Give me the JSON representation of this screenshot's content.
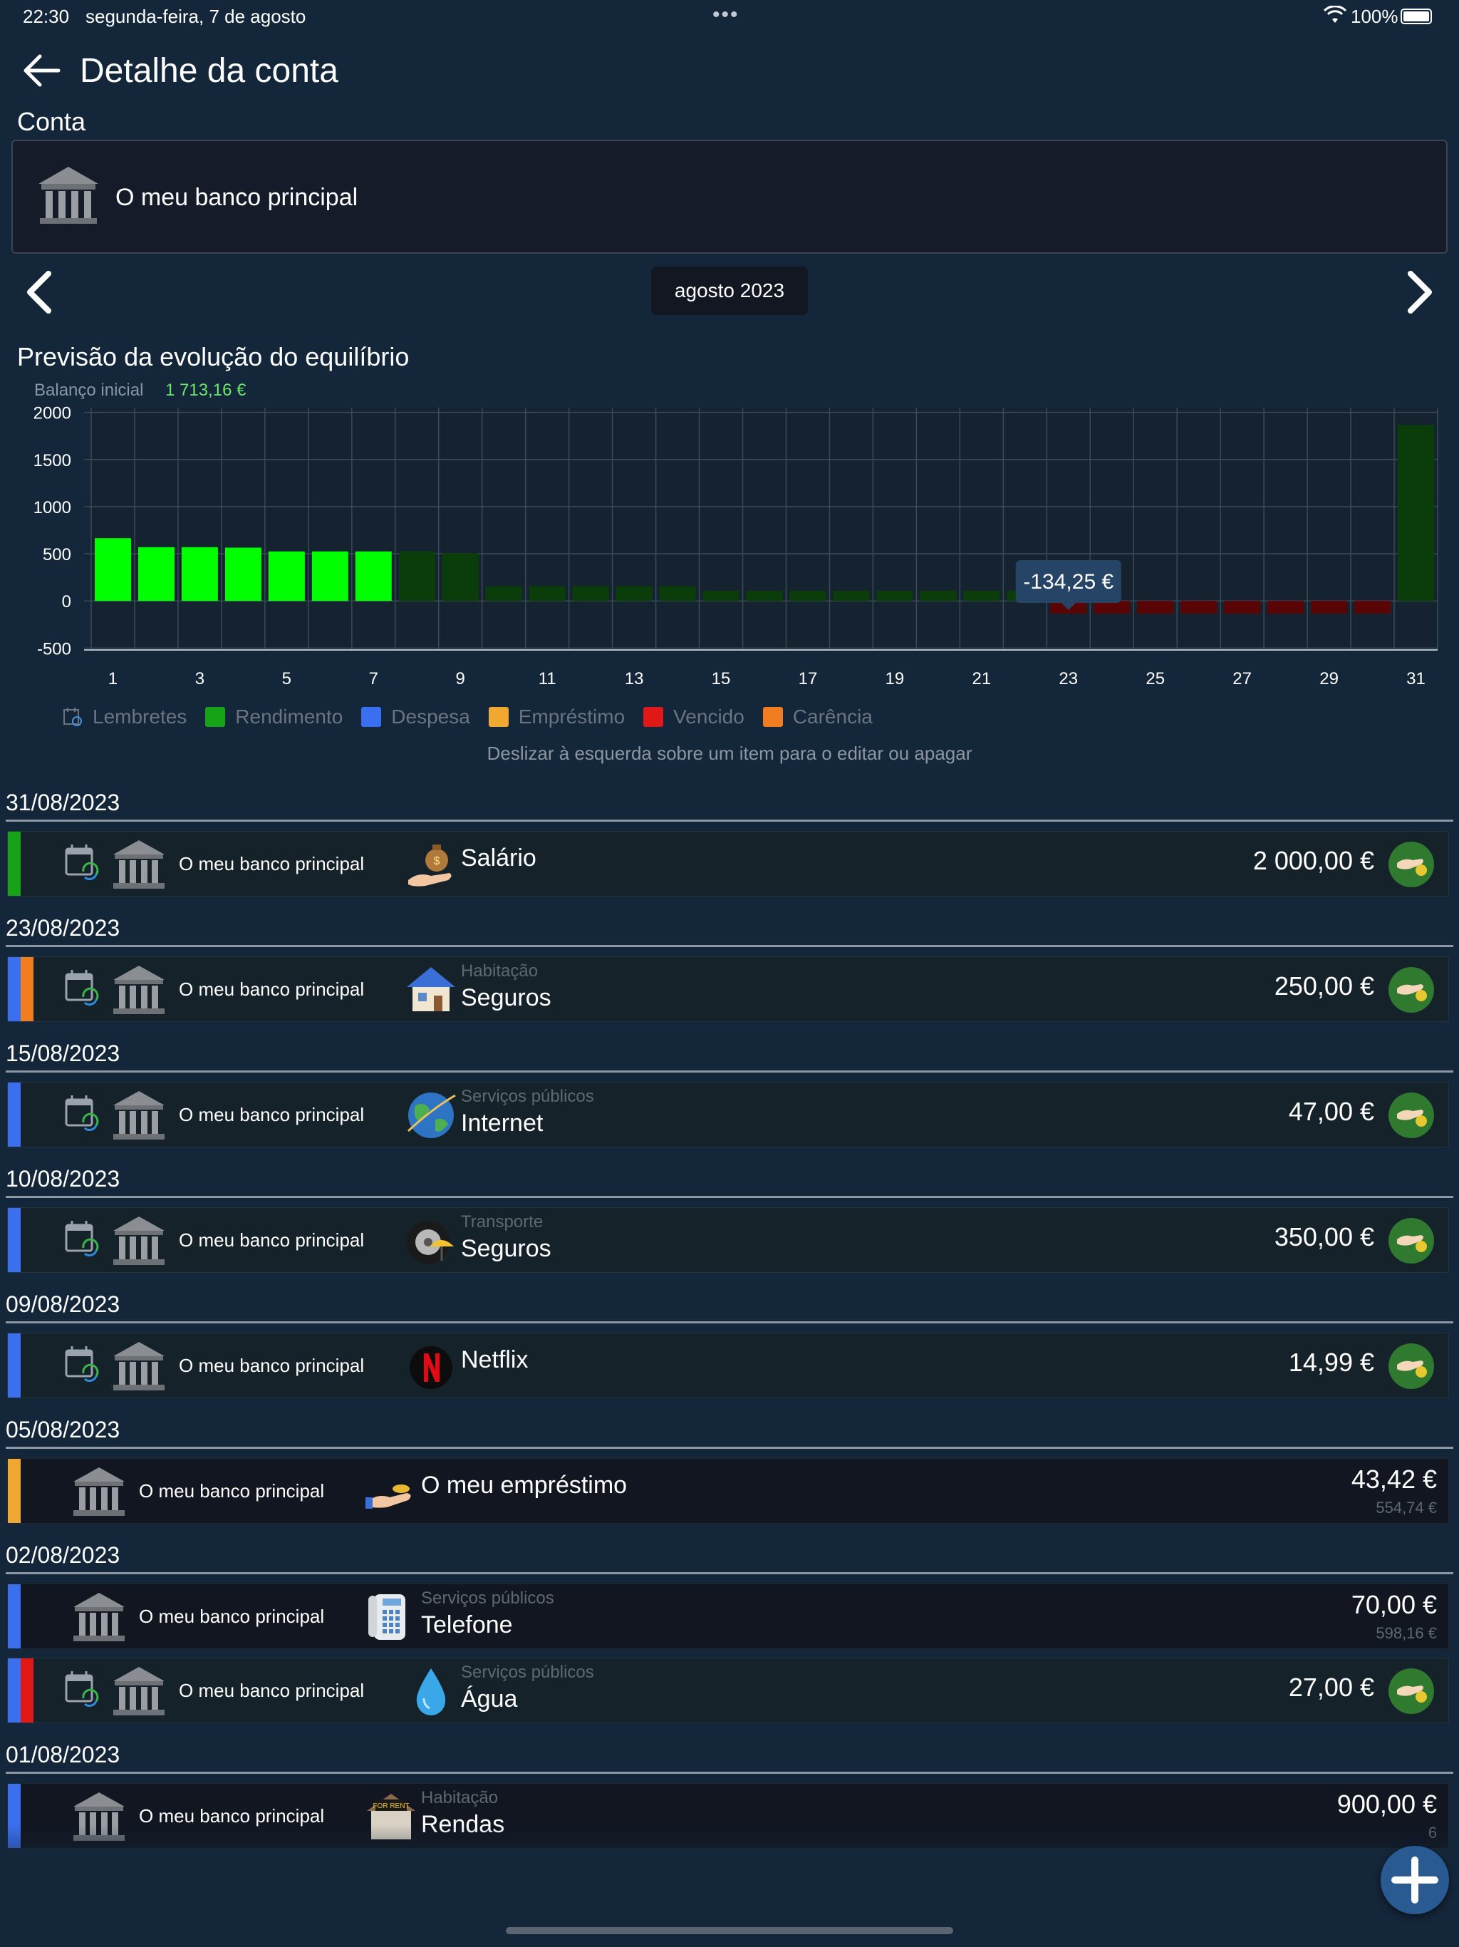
{
  "status_bar": {
    "time": "22:30",
    "date": "segunda-feira, 7 de agosto",
    "battery": "100%"
  },
  "header": {
    "title": "Detalhe da conta"
  },
  "account": {
    "label": "Conta",
    "name": "O meu banco principal"
  },
  "month_nav": {
    "month": "agosto 2023"
  },
  "chart_section": {
    "title": "Previsão da evolução do equilíbrio",
    "initial_label": "Balanço inicial",
    "initial_value": "1 713,16 €",
    "tooltip": "-134,25 €",
    "hint": "Deslizar à esquerda sobre um item para o editar ou apagar"
  },
  "legend": [
    {
      "label": "Lembretes",
      "color": "#4a90d9",
      "icon": "calendar-icon"
    },
    {
      "label": "Rendimento",
      "color": "#17a317"
    },
    {
      "label": "Despesa",
      "color": "#3a6ff0"
    },
    {
      "label": "Empréstimo",
      "color": "#f0a830"
    },
    {
      "label": "Vencido",
      "color": "#e01818"
    },
    {
      "label": "Carência",
      "color": "#f07d20"
    }
  ],
  "chart_data": {
    "type": "bar",
    "x": [
      1,
      2,
      3,
      4,
      5,
      6,
      7,
      8,
      9,
      10,
      11,
      12,
      13,
      14,
      15,
      16,
      17,
      18,
      19,
      20,
      21,
      22,
      23,
      24,
      25,
      26,
      27,
      28,
      29,
      30,
      31
    ],
    "values": [
      665,
      570,
      570,
      565,
      525,
      525,
      525,
      525,
      505,
      155,
      155,
      155,
      155,
      155,
      108,
      108,
      108,
      108,
      108,
      108,
      108,
      108,
      -134.25,
      -134.25,
      -134.25,
      -134.25,
      -134.25,
      -134.25,
      -134.25,
      -134.25,
      1865.75
    ],
    "past_days": 7,
    "xticks": [
      1,
      3,
      5,
      7,
      9,
      11,
      13,
      15,
      17,
      19,
      21,
      23,
      25,
      27,
      29,
      31
    ],
    "yticks": [
      -500,
      0,
      500,
      1000,
      1500,
      2000
    ],
    "ylim": [
      -520,
      2050
    ],
    "grid": true,
    "colors": {
      "past_positive": "#00ff00",
      "future_positive": "#0b3d0b",
      "negative": "#5a0505"
    }
  },
  "groups": [
    {
      "date": "31/08/2023",
      "items": [
        {
          "bars": [
            "#17a317"
          ],
          "reminder": true,
          "account": "O meu banco principal",
          "icon": "money-bag-icon",
          "category": "",
          "name": "Salário",
          "amount": "2 000,00 €",
          "sub": "",
          "action": true,
          "dark": false
        }
      ]
    },
    {
      "date": "23/08/2023",
      "items": [
        {
          "bars": [
            "#3a6ff0",
            "#f07d20"
          ],
          "reminder": true,
          "account": "O meu banco principal",
          "icon": "house-icon",
          "category": "Habitação",
          "name": "Seguros",
          "amount": "250,00 €",
          "sub": "",
          "action": true,
          "dark": false
        }
      ]
    },
    {
      "date": "15/08/2023",
      "items": [
        {
          "bars": [
            "#3a6ff0"
          ],
          "reminder": true,
          "account": "O meu banco principal",
          "icon": "globe-icon",
          "category": "Serviços públicos",
          "name": "Internet",
          "amount": "47,00 €",
          "sub": "",
          "action": true,
          "dark": false
        }
      ]
    },
    {
      "date": "10/08/2023",
      "items": [
        {
          "bars": [
            "#3a6ff0"
          ],
          "reminder": true,
          "account": "O meu banco principal",
          "icon": "tire-umbrella-icon",
          "category": "Transporte",
          "name": "Seguros",
          "amount": "350,00 €",
          "sub": "",
          "action": true,
          "dark": false
        }
      ]
    },
    {
      "date": "09/08/2023",
      "items": [
        {
          "bars": [
            "#3a6ff0"
          ],
          "reminder": true,
          "account": "O meu banco principal",
          "icon": "netflix-icon",
          "category": "",
          "name": "Netflix",
          "amount": "14,99 €",
          "sub": "",
          "action": true,
          "dark": false
        }
      ]
    },
    {
      "date": "05/08/2023",
      "items": [
        {
          "bars": [
            "#f0a830"
          ],
          "reminder": false,
          "account": "O meu banco principal",
          "icon": "loan-hand-icon",
          "category": "",
          "name": "O meu empréstimo",
          "amount": "43,42 €",
          "sub": "554,74 €",
          "action": false,
          "dark": true
        }
      ]
    },
    {
      "date": "02/08/2023",
      "items": [
        {
          "bars": [
            "#3a6ff0"
          ],
          "reminder": false,
          "account": "O meu banco principal",
          "icon": "telephone-icon",
          "category": "Serviços públicos",
          "name": "Telefone",
          "amount": "70,00 €",
          "sub": "598,16 €",
          "action": false,
          "dark": true
        },
        {
          "bars": [
            "#3a6ff0",
            "#e01818"
          ],
          "reminder": true,
          "account": "O meu banco principal",
          "icon": "water-drop-icon",
          "category": "Serviços públicos",
          "name": "Água",
          "amount": "27,00 €",
          "sub": "",
          "action": true,
          "dark": false
        }
      ]
    },
    {
      "date": "01/08/2023",
      "items": [
        {
          "bars": [
            "#3a6ff0"
          ],
          "reminder": false,
          "account": "O meu banco principal",
          "icon": "for-rent-icon",
          "category": "Habitação",
          "name": "Rendas",
          "amount": "900,00 €",
          "sub": "6",
          "action": false,
          "dark": true
        }
      ]
    }
  ]
}
